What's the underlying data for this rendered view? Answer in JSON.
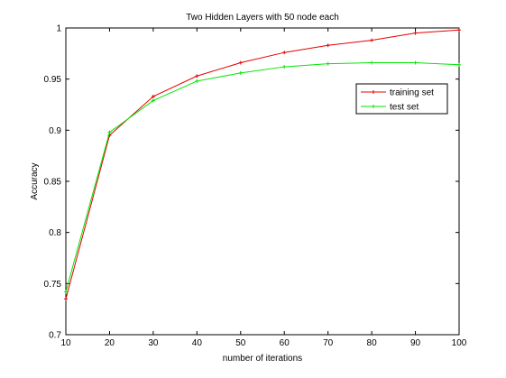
{
  "chart_data": {
    "type": "line",
    "title": "Two Hidden Layers with 50 node each",
    "xlabel": "number of iterations",
    "ylabel": "Accuracy",
    "x": [
      10,
      20,
      30,
      40,
      50,
      60,
      70,
      80,
      90,
      100
    ],
    "xlim": [
      10,
      100
    ],
    "ylim": [
      0.7,
      1.0
    ],
    "xticks": [
      "10",
      "20",
      "30",
      "40",
      "50",
      "60",
      "70",
      "80",
      "90",
      "100"
    ],
    "yticks": [
      "0.7",
      "0.75",
      "0.8",
      "0.85",
      "0.9",
      "0.95",
      "1"
    ],
    "grid": false,
    "legend_position": "top-right",
    "series": [
      {
        "name": "training set",
        "color": "#e60000",
        "values": [
          0.735,
          0.895,
          0.933,
          0.953,
          0.966,
          0.976,
          0.983,
          0.988,
          0.995,
          0.998
        ]
      },
      {
        "name": "test set",
        "color": "#00e600",
        "values": [
          0.742,
          0.898,
          0.929,
          0.948,
          0.956,
          0.962,
          0.965,
          0.966,
          0.966,
          0.964
        ]
      }
    ]
  }
}
